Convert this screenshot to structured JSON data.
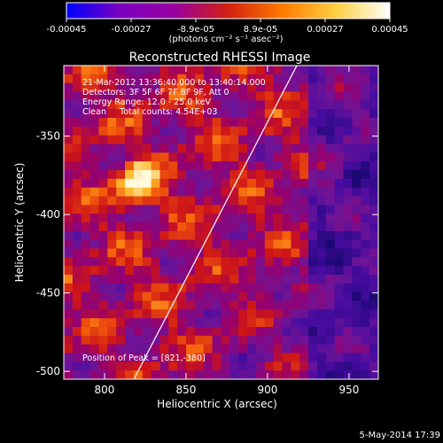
{
  "chart_data": {
    "type": "heatmap",
    "title": "Reconstructed RHESSI Image",
    "xlabel": "Heliocentric X (arcsec)",
    "ylabel": "Heliocentric Y (arcsec)",
    "xlim": [
      775,
      968
    ],
    "ylim": [
      -505,
      -305
    ],
    "x_ticks": [
      "800",
      "850",
      "900",
      "950"
    ],
    "y_ticks": [
      "-350",
      "-400",
      "-450",
      "-500"
    ],
    "colorbar": {
      "range": [
        -0.00045,
        0.00045
      ],
      "tick_labels": [
        "-0.00045",
        "-0.00027",
        "-8.9e-05",
        "8.9e-05",
        "0.00027",
        "0.00045"
      ],
      "unit_label": "(photons cm⁻² s⁻¹ asec⁻²)",
      "colors": [
        "#0000ff",
        "#7a00c0",
        "#9900a0",
        "#d22010",
        "#ff7a00",
        "#ffd040",
        "#ffffff"
      ]
    },
    "annotations": [
      "21-Mar-2012 13:36:40.000 to 13:40:14.000",
      "Detectors: 3F 5F 6F 7F 8F 9F, Att 0",
      "Energy Range: 12.0 - 25.0 keV",
      "Clean     Total counts: 4.54E+03"
    ],
    "peak_label": "Position of Peak = [821,-380]",
    "peak": {
      "x": 821,
      "y": -380
    },
    "limb_line": [
      [
        818,
        -505
      ],
      [
        918,
        -305
      ]
    ]
  },
  "footer": {
    "date": "5-May-2014 17:39"
  }
}
